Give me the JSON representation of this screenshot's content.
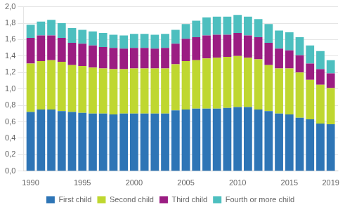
{
  "chart_data": {
    "type": "bar",
    "stacked": true,
    "x": [
      1990,
      1991,
      1992,
      1993,
      1994,
      1995,
      1996,
      1997,
      1998,
      1999,
      2000,
      2001,
      2002,
      2003,
      2004,
      2005,
      2006,
      2007,
      2008,
      2009,
      2010,
      2011,
      2012,
      2013,
      2014,
      2015,
      2016,
      2017,
      2018,
      2019
    ],
    "series": [
      {
        "name": "First child",
        "color": "#2e75b6",
        "values": [
          0.72,
          0.75,
          0.75,
          0.73,
          0.72,
          0.71,
          0.7,
          0.7,
          0.69,
          0.7,
          0.7,
          0.7,
          0.7,
          0.7,
          0.74,
          0.75,
          0.76,
          0.76,
          0.76,
          0.77,
          0.78,
          0.78,
          0.75,
          0.73,
          0.7,
          0.69,
          0.65,
          0.63,
          0.58,
          0.57
        ]
      },
      {
        "name": "Second child",
        "color": "#bfd730",
        "values": [
          0.59,
          0.59,
          0.6,
          0.6,
          0.57,
          0.57,
          0.56,
          0.55,
          0.55,
          0.54,
          0.55,
          0.55,
          0.55,
          0.55,
          0.56,
          0.59,
          0.59,
          0.61,
          0.62,
          0.62,
          0.62,
          0.6,
          0.61,
          0.56,
          0.55,
          0.56,
          0.55,
          0.48,
          0.47,
          0.44
        ]
      },
      {
        "name": "Third child",
        "color": "#9b1d82",
        "values": [
          0.31,
          0.31,
          0.3,
          0.29,
          0.27,
          0.27,
          0.27,
          0.26,
          0.26,
          0.25,
          0.25,
          0.25,
          0.24,
          0.25,
          0.25,
          0.27,
          0.28,
          0.28,
          0.28,
          0.27,
          0.28,
          0.27,
          0.27,
          0.27,
          0.24,
          0.22,
          0.21,
          0.2,
          0.19,
          0.18
        ]
      },
      {
        "name": "Fourth or more child",
        "color": "#4dbfbf",
        "values": [
          0.16,
          0.17,
          0.19,
          0.18,
          0.18,
          0.17,
          0.17,
          0.17,
          0.16,
          0.16,
          0.17,
          0.17,
          0.17,
          0.17,
          0.17,
          0.18,
          0.2,
          0.22,
          0.22,
          0.22,
          0.22,
          0.23,
          0.22,
          0.23,
          0.22,
          0.22,
          0.22,
          0.22,
          0.22,
          0.16
        ]
      }
    ],
    "xlim": [
      1989.3,
      2019.7
    ],
    "xticks": [
      1990,
      1995,
      2000,
      2005,
      2010,
      2015,
      2019
    ],
    "ylim": [
      0.0,
      2.0
    ],
    "yticks": [
      {
        "value": 0.0,
        "label": "0,0"
      },
      {
        "value": 0.2,
        "label": "0,2"
      },
      {
        "value": 0.4,
        "label": "0,4"
      },
      {
        "value": 0.6,
        "label": "0,6"
      },
      {
        "value": 0.8,
        "label": "0,8"
      },
      {
        "value": 1.0,
        "label": "1,0"
      },
      {
        "value": 1.2,
        "label": "1,2"
      },
      {
        "value": 1.4,
        "label": "1,4"
      },
      {
        "value": 1.6,
        "label": "1,6"
      },
      {
        "value": 1.8,
        "label": "1,8"
      },
      {
        "value": 2.0,
        "label": "2,0"
      }
    ],
    "grid": true,
    "legend": "bottom"
  }
}
